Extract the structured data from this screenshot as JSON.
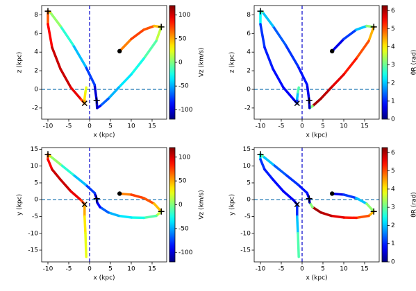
{
  "chart_data": [
    {
      "type": "line",
      "xlabel": "x (kpc)",
      "ylabel": "z (kpc)",
      "colorbar_label": "Vz (km/s)",
      "colormap": "jet",
      "xlim": [
        -11.5,
        18.5
      ],
      "xticks": [
        -10,
        -5,
        0,
        5,
        10,
        15
      ],
      "ylim": [
        -3.2,
        9
      ],
      "yticks": [
        -2,
        0,
        2,
        4,
        6,
        8
      ],
      "clim": [
        -120,
        120
      ],
      "cticks": [
        -100,
        -50,
        0,
        50,
        100
      ],
      "hline": 0,
      "hline_color": "#1f77b4",
      "vline": 0,
      "vline_color": "#0000cc",
      "x": [
        7.2,
        10,
        13,
        15.5,
        17.2,
        16,
        13,
        10,
        7,
        4.5,
        2.5,
        1.8,
        1.7,
        1.2,
        -1,
        -4,
        -7,
        -9.5,
        -10,
        -10,
        -9,
        -7,
        -4.5,
        -2,
        -1.2,
        -1.2,
        -1,
        -0.8
      ],
      "y": [
        4.1,
        5.4,
        6.4,
        6.8,
        6.7,
        5.2,
        3.3,
        1.6,
        0.2,
        -1.0,
        -1.8,
        -2.0,
        -1.2,
        0.5,
        2.5,
        4.8,
        6.8,
        8.3,
        8.4,
        7,
        4.5,
        2.2,
        0.2,
        -1.1,
        -1.5,
        -1.0,
        -0.3,
        0.2
      ],
      "c": [
        50,
        70,
        80,
        60,
        30,
        0,
        -20,
        -30,
        -40,
        -55,
        -80,
        -100,
        -110,
        -90,
        -60,
        -30,
        -10,
        20,
        60,
        80,
        100,
        105,
        100,
        90,
        60,
        40,
        30,
        20
      ],
      "markers": [
        {
          "symbol": "dot",
          "x": 7.2,
          "y": 4.1
        },
        {
          "symbol": "plus",
          "x": 17.2,
          "y": 6.7
        },
        {
          "symbol": "plus",
          "x": 1.7,
          "y": -1.2
        },
        {
          "symbol": "plus",
          "x": -10,
          "y": 8.4
        },
        {
          "symbol": "cross",
          "x": -1.2,
          "y": -1.5
        }
      ]
    },
    {
      "type": "line",
      "xlabel": "x (kpc)",
      "ylabel": "z (kpc)",
      "colorbar_label": "θR (rad)",
      "colormap": "jet",
      "xlim": [
        -11.5,
        18.5
      ],
      "xticks": [
        -10,
        -5,
        0,
        5,
        10,
        15
      ],
      "ylim": [
        -3.2,
        9
      ],
      "yticks": [
        -2,
        0,
        2,
        4,
        6,
        8
      ],
      "clim": [
        0,
        6.28
      ],
      "cticks": [
        0,
        1,
        2,
        3,
        4,
        5,
        6
      ],
      "hline": 0,
      "hline_color": "#1f77b4",
      "vline": 0,
      "vline_color": "#0000cc",
      "x": [
        7.2,
        10,
        13,
        15.5,
        17.2,
        16,
        13,
        10,
        7,
        4.5,
        2.5,
        1.8,
        1.7,
        1.2,
        -1,
        -4,
        -7,
        -9.5,
        -10,
        -10,
        -9,
        -7,
        -4.5,
        -2,
        -1.2,
        -1.2,
        -1,
        -0.8
      ],
      "y": [
        4.1,
        5.4,
        6.4,
        6.8,
        6.7,
        5.2,
        3.3,
        1.6,
        0.2,
        -1.0,
        -1.8,
        -2.0,
        -1.2,
        0.5,
        2.5,
        4.8,
        6.8,
        8.3,
        8.4,
        7,
        4.5,
        2.2,
        0.2,
        -1.1,
        -1.5,
        -1.0,
        -0.3,
        0.2
      ],
      "c": [
        0.5,
        0.8,
        1.5,
        2.5,
        4,
        4.8,
        5.2,
        5.5,
        5.8,
        6,
        6.1,
        0.3,
        0.5,
        0.8,
        1.0,
        1.2,
        1.5,
        2.5,
        3.5,
        1.2,
        1.0,
        0.9,
        0.8,
        0.7,
        0.6,
        1.5,
        2.5,
        3.2
      ],
      "markers": [
        {
          "symbol": "dot",
          "x": 7.2,
          "y": 4.1
        },
        {
          "symbol": "plus",
          "x": 17.2,
          "y": 6.7
        },
        {
          "symbol": "plus",
          "x": 1.7,
          "y": -1.2
        },
        {
          "symbol": "plus",
          "x": -10,
          "y": 8.4
        },
        {
          "symbol": "cross",
          "x": -1.2,
          "y": -1.5
        }
      ]
    },
    {
      "type": "line",
      "xlabel": "x (kpc)",
      "ylabel": "y (kpc)",
      "colorbar_label": "Vz (km/s)",
      "colormap": "jet",
      "xlim": [
        -11.5,
        18.5
      ],
      "xticks": [
        -10,
        -5,
        0,
        5,
        10,
        15
      ],
      "ylim": [
        -18.5,
        15.5
      ],
      "yticks": [
        -15,
        -10,
        -5,
        0,
        5,
        10,
        15
      ],
      "clim": [
        -120,
        120
      ],
      "cticks": [
        -100,
        -50,
        0,
        50,
        100
      ],
      "hline": 0,
      "hline_color": "#1f77b4",
      "vline": 0,
      "vline_color": "#0000cc",
      "x": [
        7.2,
        10,
        13,
        15.5,
        17.2,
        16,
        13,
        10,
        7,
        4.5,
        2.5,
        1.8,
        1.7,
        1.2,
        -1,
        -4,
        -7,
        -9.5,
        -10,
        -10,
        -9,
        -7,
        -4.5,
        -2,
        -1.2,
        -1.2,
        -1,
        -0.8
      ],
      "y": [
        1.8,
        1.5,
        0.5,
        -1.2,
        -3.5,
        -4.8,
        -5.4,
        -5.3,
        -4.8,
        -3.8,
        -2.2,
        -0.8,
        0.3,
        2,
        4.5,
        7.5,
        10.5,
        13,
        13.5,
        12,
        9,
        6,
        2.5,
        -0.2,
        -1.4,
        -5,
        -10,
        -17
      ],
      "c": [
        50,
        70,
        80,
        60,
        30,
        0,
        -20,
        -30,
        -40,
        -55,
        -80,
        -100,
        -110,
        -90,
        -60,
        -30,
        -10,
        20,
        60,
        80,
        100,
        105,
        100,
        90,
        60,
        40,
        30,
        20
      ],
      "markers": [
        {
          "symbol": "dot",
          "x": 7.2,
          "y": 1.8
        },
        {
          "symbol": "plus",
          "x": 17.2,
          "y": -3.5
        },
        {
          "symbol": "plus",
          "x": 1.7,
          "y": 0.3
        },
        {
          "symbol": "plus",
          "x": -10,
          "y": 13.5
        },
        {
          "symbol": "cross",
          "x": -1.2,
          "y": -1.4
        }
      ]
    },
    {
      "type": "line",
      "xlabel": "x (kpc)",
      "ylabel": "y (kpc)",
      "colorbar_label": "θR (rad)",
      "colormap": "jet",
      "xlim": [
        -11.5,
        18.5
      ],
      "xticks": [
        -10,
        -5,
        0,
        5,
        10,
        15
      ],
      "ylim": [
        -18.5,
        15.5
      ],
      "yticks": [
        -15,
        -10,
        -5,
        0,
        5,
        10,
        15
      ],
      "clim": [
        0,
        6.28
      ],
      "cticks": [
        0,
        1,
        2,
        3,
        4,
        5,
        6
      ],
      "hline": 0,
      "hline_color": "#1f77b4",
      "vline": 0,
      "vline_color": "#0000cc",
      "x": [
        7.2,
        10,
        13,
        15.5,
        17.2,
        16,
        13,
        10,
        7,
        4.5,
        2.5,
        1.8,
        1.7,
        1.2,
        -1,
        -4,
        -7,
        -9.5,
        -10,
        -10,
        -9,
        -7,
        -4.5,
        -2,
        -1.2,
        -1.2,
        -1,
        -0.8
      ],
      "y": [
        1.8,
        1.5,
        0.5,
        -1.2,
        -3.5,
        -4.8,
        -5.4,
        -5.3,
        -4.8,
        -3.8,
        -2.2,
        -0.8,
        0.3,
        2,
        4.5,
        7.5,
        10.5,
        13,
        13.5,
        12,
        9,
        6,
        2.5,
        -0.2,
        -1.4,
        -5,
        -10,
        -17
      ],
      "c": [
        0.5,
        0.8,
        1.5,
        2.5,
        4,
        4.8,
        5.2,
        5.5,
        5.8,
        6,
        6.1,
        0.3,
        0.5,
        0.8,
        1.0,
        1.2,
        1.5,
        2.5,
        3.5,
        1.2,
        1.0,
        0.9,
        0.8,
        0.7,
        0.6,
        1.5,
        2.5,
        3.2
      ],
      "markers": [
        {
          "symbol": "dot",
          "x": 7.2,
          "y": 1.8
        },
        {
          "symbol": "plus",
          "x": 17.2,
          "y": -3.5
        },
        {
          "symbol": "plus",
          "x": 1.7,
          "y": 0.3
        },
        {
          "symbol": "plus",
          "x": -10,
          "y": 13.5
        },
        {
          "symbol": "cross",
          "x": -1.2,
          "y": -1.4
        }
      ]
    }
  ]
}
